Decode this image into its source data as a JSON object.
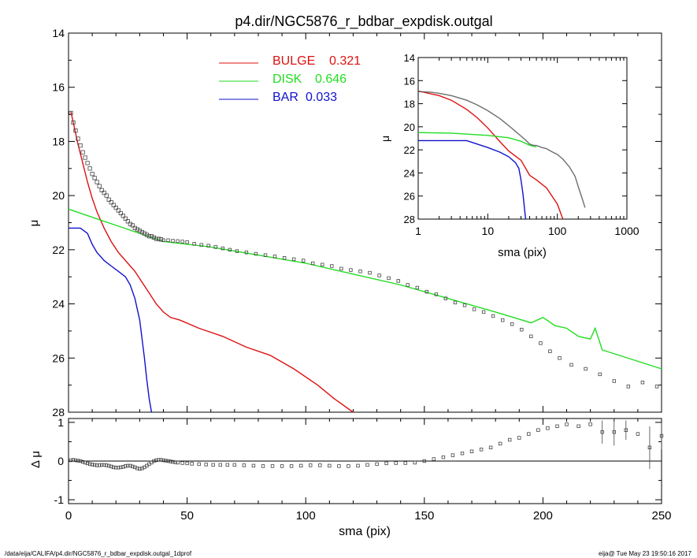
{
  "chart_data": [
    {
      "type": "line",
      "id": "main",
      "title": "p4.dir/NGC5876_r_bdbar_expdisk.outgal",
      "xlabel": "",
      "ylabel": "μ",
      "xlim": [
        0,
        250
      ],
      "ylim": [
        28,
        14
      ],
      "xticks": [
        0,
        50,
        100,
        150,
        200,
        250
      ],
      "yticks": [
        14,
        16,
        18,
        20,
        22,
        24,
        26,
        28
      ],
      "legend_position": "top-center",
      "series": [
        {
          "name": "BULGE",
          "legend_value": "0.321",
          "color": "#dd1111",
          "x": [
            1,
            2,
            4,
            6,
            8,
            10,
            12,
            15,
            18,
            21,
            25,
            28,
            31,
            34,
            37,
            40,
            43,
            47,
            55,
            65,
            75,
            85,
            95,
            105,
            112,
            120
          ],
          "y": [
            16.9,
            17.3,
            18.1,
            18.8,
            19.5,
            20.1,
            20.6,
            21.2,
            21.7,
            22.1,
            22.5,
            22.8,
            23.2,
            23.6,
            24.0,
            24.3,
            24.5,
            24.6,
            24.9,
            25.2,
            25.6,
            25.9,
            26.4,
            27.0,
            27.5,
            28.0
          ]
        },
        {
          "name": "DISK",
          "legend_value": "0.646",
          "color": "#22dd22",
          "x": [
            0,
            20,
            40,
            60,
            80,
            100,
            120,
            140,
            160,
            180,
            195,
            200,
            205,
            210,
            215,
            220,
            222,
            225,
            250
          ],
          "y": [
            20.5,
            21.1,
            21.7,
            21.9,
            22.2,
            22.5,
            22.9,
            23.3,
            23.8,
            24.3,
            24.7,
            24.5,
            24.8,
            24.9,
            25.2,
            25.3,
            24.9,
            25.7,
            26.4
          ]
        },
        {
          "name": "BAR",
          "legend_value": "0.033",
          "color": "#1111cc",
          "x": [
            0,
            5,
            8,
            10,
            12,
            15,
            18,
            21,
            24,
            26,
            28,
            30,
            31,
            32,
            33,
            34,
            35
          ],
          "y": [
            21.2,
            21.2,
            21.4,
            21.8,
            22.1,
            22.4,
            22.6,
            22.8,
            23.0,
            23.3,
            23.8,
            24.6,
            25.3,
            26.0,
            26.8,
            27.5,
            28.0
          ]
        }
      ],
      "data_points": {
        "name": "",
        "x": [
          1,
          2,
          3,
          4,
          5,
          6,
          7,
          8,
          9,
          10,
          11,
          12,
          13,
          14,
          15,
          16,
          17,
          18,
          19,
          20,
          21,
          22,
          23,
          24,
          25,
          26,
          27,
          28,
          29,
          30,
          31,
          32,
          33,
          34,
          35,
          36,
          37,
          38,
          39,
          40,
          42,
          44,
          46,
          48,
          50,
          53,
          56,
          59,
          62,
          65,
          68,
          71,
          75,
          79,
          83,
          87,
          91,
          95,
          99,
          103,
          107,
          111,
          115,
          119,
          123,
          127,
          131,
          135,
          139,
          143,
          147,
          151,
          155,
          159,
          163,
          167,
          171,
          175,
          179,
          183,
          187,
          191,
          195,
          199,
          203,
          207,
          212,
          218,
          224,
          230,
          236,
          242,
          248
        ],
        "y": [
          16.95,
          17.3,
          17.6,
          17.9,
          18.15,
          18.4,
          18.6,
          18.8,
          19.0,
          19.2,
          19.35,
          19.5,
          19.65,
          19.8,
          19.9,
          20.0,
          20.15,
          20.25,
          20.35,
          20.45,
          20.55,
          20.65,
          20.75,
          20.85,
          20.95,
          21.05,
          21.1,
          21.2,
          21.25,
          21.3,
          21.35,
          21.4,
          21.45,
          21.5,
          21.5,
          21.55,
          21.6,
          21.6,
          21.62,
          21.65,
          21.65,
          21.67,
          21.68,
          21.7,
          21.72,
          21.78,
          21.82,
          21.85,
          21.9,
          21.95,
          22.0,
          22.05,
          22.1,
          22.15,
          22.2,
          22.25,
          22.3,
          22.35,
          22.4,
          22.5,
          22.55,
          22.6,
          22.7,
          22.75,
          22.8,
          22.85,
          22.95,
          23.05,
          23.15,
          23.3,
          23.4,
          23.55,
          23.65,
          23.8,
          23.95,
          24.05,
          24.2,
          24.3,
          24.45,
          24.6,
          24.75,
          24.95,
          25.2,
          25.45,
          25.75,
          26.0,
          26.25,
          26.4,
          26.6,
          26.85,
          27.05,
          26.9,
          27.05
        ]
      }
    },
    {
      "type": "line",
      "id": "inset",
      "title": "",
      "xlabel": "sma (pix)",
      "ylabel": "μ",
      "xscale": "log",
      "xlim": [
        1,
        1000
      ],
      "ylim": [
        28,
        14
      ],
      "xticks": [
        1,
        10,
        100,
        1000
      ],
      "yticks": [
        14,
        16,
        18,
        20,
        22,
        24,
        26,
        28
      ],
      "series": [
        {
          "name": "BULGE",
          "color": "#dd1111",
          "x": [
            1,
            2,
            3,
            5,
            7,
            10,
            15,
            20,
            30,
            40,
            50,
            70,
            100,
            120
          ],
          "y": [
            16.9,
            17.3,
            17.7,
            18.5,
            19.2,
            20.1,
            21.3,
            22.1,
            22.9,
            24.2,
            24.6,
            25.3,
            26.7,
            28.0
          ]
        },
        {
          "name": "DISK",
          "color": "#22dd22",
          "x": [
            1,
            3,
            10,
            20,
            30,
            40,
            50
          ],
          "y": [
            20.5,
            20.55,
            20.75,
            20.95,
            21.25,
            21.6,
            21.75
          ]
        },
        {
          "name": "BAR",
          "color": "#1111cc",
          "x": [
            1,
            5,
            10,
            15,
            20,
            25,
            28,
            30,
            32,
            34,
            35
          ],
          "y": [
            21.2,
            21.2,
            21.8,
            22.2,
            22.6,
            23.1,
            23.6,
            24.6,
            25.8,
            27.3,
            28.0
          ]
        },
        {
          "name": "",
          "color": "#555555",
          "x": [
            1,
            1.5,
            2,
            3,
            5,
            7,
            10,
            15,
            20,
            25,
            30,
            35,
            40,
            45,
            50,
            60,
            70,
            80,
            100,
            120,
            150,
            180,
            200,
            230,
            250
          ],
          "y": [
            16.95,
            17.0,
            17.1,
            17.3,
            17.7,
            18.1,
            18.6,
            19.3,
            19.9,
            20.4,
            20.8,
            21.15,
            21.5,
            21.6,
            21.62,
            21.8,
            21.9,
            22.1,
            22.4,
            22.8,
            23.5,
            24.3,
            25.2,
            26.3,
            27.0
          ]
        }
      ]
    },
    {
      "type": "scatter",
      "id": "residual",
      "title": "",
      "xlabel": "sma (pix)",
      "ylabel": "Δ μ",
      "xlim": [
        0,
        250
      ],
      "ylim": [
        -1.1,
        1.1
      ],
      "xticks": [
        0,
        50,
        100,
        150,
        200,
        250
      ],
      "yticks": [
        -1,
        0,
        1
      ],
      "zero_line": true,
      "x": [
        1,
        2,
        3,
        4,
        5,
        6,
        7,
        8,
        9,
        10,
        11,
        12,
        13,
        14,
        15,
        16,
        17,
        18,
        19,
        20,
        21,
        22,
        23,
        24,
        25,
        26,
        27,
        28,
        29,
        30,
        31,
        32,
        33,
        34,
        35,
        36,
        37,
        38,
        39,
        40,
        41,
        42,
        43,
        44,
        45,
        46,
        48,
        50,
        52,
        55,
        58,
        61,
        64,
        67,
        70,
        74,
        78,
        82,
        86,
        90,
        94,
        98,
        102,
        106,
        110,
        114,
        118,
        122,
        126,
        130,
        134,
        138,
        142,
        146,
        150,
        154,
        158,
        162,
        166,
        170,
        174,
        178,
        182,
        186,
        190,
        194,
        198,
        202,
        206,
        210,
        215,
        220,
        225,
        230,
        235,
        240,
        245,
        250
      ],
      "y": [
        0.02,
        0.03,
        0.02,
        0.01,
        0.0,
        -0.02,
        -0.04,
        -0.06,
        -0.08,
        -0.09,
        -0.1,
        -0.11,
        -0.11,
        -0.1,
        -0.1,
        -0.11,
        -0.12,
        -0.14,
        -0.16,
        -0.17,
        -0.17,
        -0.16,
        -0.15,
        -0.13,
        -0.12,
        -0.12,
        -0.14,
        -0.16,
        -0.19,
        -0.2,
        -0.19,
        -0.16,
        -0.12,
        -0.08,
        -0.04,
        0.0,
        0.02,
        0.03,
        0.03,
        0.02,
        0.01,
        0.0,
        -0.01,
        -0.02,
        -0.03,
        -0.04,
        -0.05,
        -0.06,
        -0.07,
        -0.08,
        -0.09,
        -0.1,
        -0.1,
        -0.1,
        -0.1,
        -0.11,
        -0.12,
        -0.13,
        -0.13,
        -0.13,
        -0.13,
        -0.12,
        -0.11,
        -0.11,
        -0.12,
        -0.13,
        -0.13,
        -0.12,
        -0.1,
        -0.08,
        -0.06,
        -0.05,
        -0.05,
        -0.04,
        0.0,
        0.05,
        0.1,
        0.15,
        0.2,
        0.25,
        0.3,
        0.35,
        0.45,
        0.55,
        0.6,
        0.7,
        0.8,
        0.85,
        0.9,
        0.95,
        0.9,
        0.95,
        0.75,
        0.75,
        0.8,
        0.7,
        0.35,
        0.65
      ],
      "error_bars": [
        {
          "x": 225,
          "y": 0.75,
          "err": 0.3
        },
        {
          "x": 230,
          "y": 0.75,
          "err": 0.35
        },
        {
          "x": 235,
          "y": 0.8,
          "err": 0.25
        },
        {
          "x": 245,
          "y": 0.35,
          "err": 0.55
        },
        {
          "x": 250,
          "y": 0.65,
          "err": 0.35
        }
      ]
    }
  ],
  "footer": {
    "left": "/data/eija/CALIFA/p4.dir/NGC5876_r_bdbar_expdisk.outgal_1dprof",
    "right": "eija@  Tue May 23 19:50:16 2017"
  }
}
